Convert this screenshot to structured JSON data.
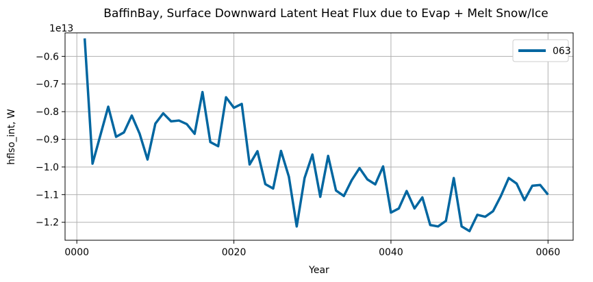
{
  "chart_data": {
    "type": "line",
    "title": "BaffinBay, Surface Downward Latent Heat Flux due to Evap + Melt Snow/Ice",
    "xlabel": "Year",
    "ylabel": "hflso_int, W",
    "y_offset_label": "1e13",
    "xlim": [
      -1.5,
      63.2
    ],
    "ylim": [
      -1.265,
      -0.515
    ],
    "x_ticks": [
      0,
      20,
      40,
      60
    ],
    "x_tick_labels": [
      "0000",
      "0020",
      "0040",
      "0060"
    ],
    "y_ticks": [
      -1.2,
      -1.1,
      -1.0,
      -0.9,
      -0.8,
      -0.7,
      -0.6
    ],
    "y_tick_labels": [
      "−1.2",
      "−1.1",
      "−1.0",
      "−0.9",
      "−0.8",
      "−0.7",
      "−0.6"
    ],
    "grid": true,
    "legend_position": "top-right",
    "series": [
      {
        "name": "063",
        "color": "#0066a0",
        "x": [
          1,
          2,
          3,
          4,
          5,
          6,
          7,
          8,
          9,
          10,
          11,
          12,
          13,
          14,
          15,
          16,
          17,
          18,
          19,
          20,
          21,
          22,
          23,
          24,
          25,
          26,
          27,
          28,
          29,
          30,
          31,
          32,
          33,
          34,
          35,
          36,
          37,
          38,
          39,
          40,
          41,
          42,
          43,
          44,
          45,
          46,
          47,
          48,
          49,
          50,
          51,
          52,
          53,
          54,
          55,
          56,
          57,
          58,
          59,
          60
        ],
        "values": [
          -0.535,
          -0.988,
          -0.885,
          -0.782,
          -0.891,
          -0.875,
          -0.814,
          -0.88,
          -0.973,
          -0.843,
          -0.806,
          -0.835,
          -0.832,
          -0.845,
          -0.88,
          -0.729,
          -0.91,
          -0.925,
          -0.748,
          -0.786,
          -0.772,
          -0.991,
          -0.943,
          -1.062,
          -1.078,
          -0.942,
          -1.035,
          -1.215,
          -1.04,
          -0.955,
          -1.108,
          -0.96,
          -1.085,
          -1.105,
          -1.048,
          -1.004,
          -1.045,
          -1.063,
          -0.998,
          -1.165,
          -1.15,
          -1.087,
          -1.15,
          -1.11,
          -1.21,
          -1.215,
          -1.195,
          -1.04,
          -1.215,
          -1.232,
          -1.173,
          -1.18,
          -1.16,
          -1.105,
          -1.04,
          -1.06,
          -1.12,
          -1.068,
          -1.065,
          -1.1
        ]
      }
    ]
  }
}
